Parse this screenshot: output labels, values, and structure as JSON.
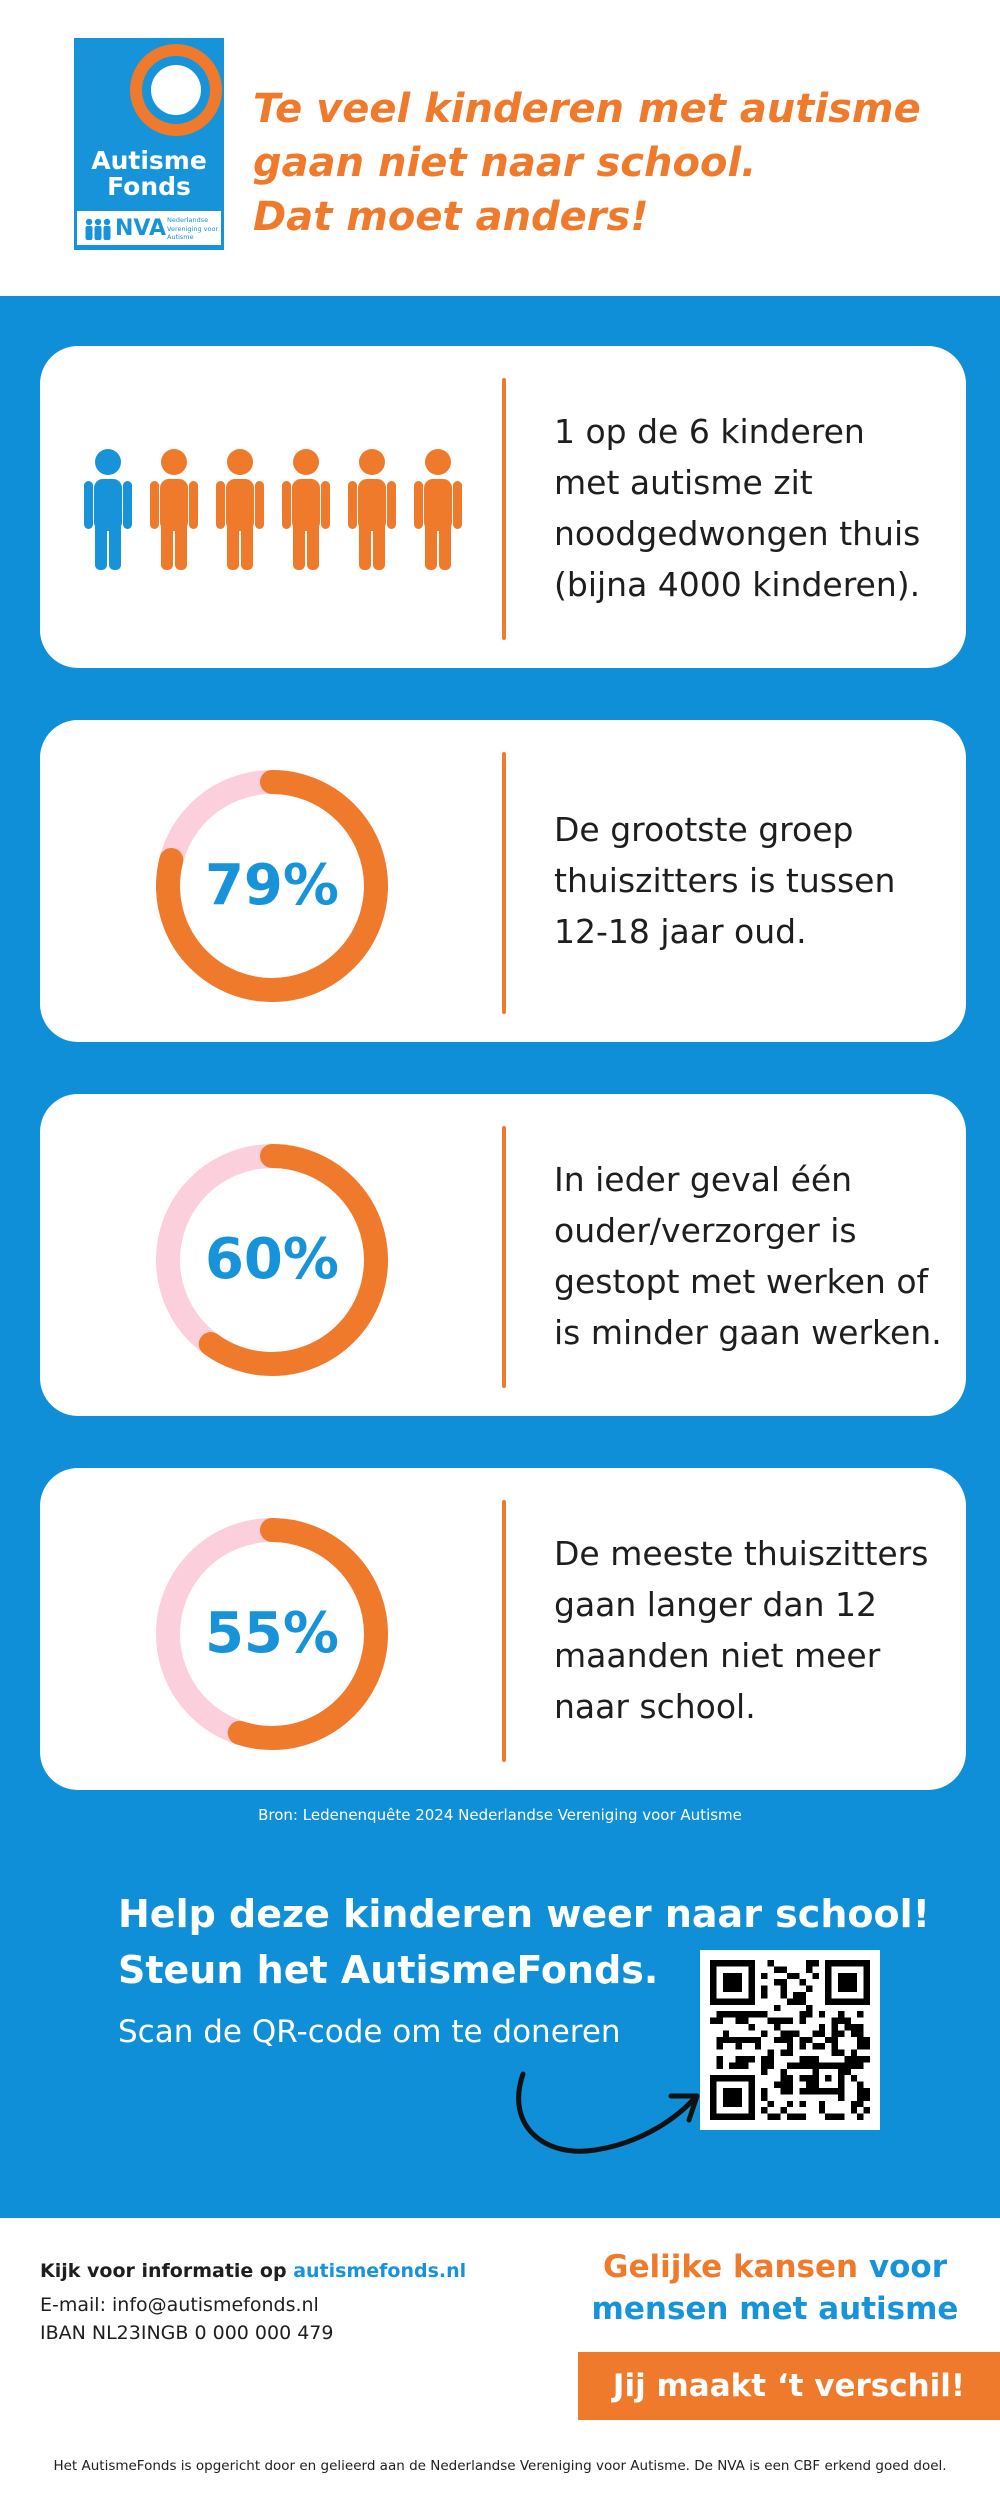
{
  "header": {
    "logo": {
      "name_line1": "Autisme",
      "name_line2": "Fonds",
      "nva": "NVA",
      "nva_sub": "Nederlandse Vereniging voor Autisme"
    },
    "headline_lines": [
      "Te veel kinderen met autisme",
      "gaan niet naar school.",
      "Dat moet anders!"
    ]
  },
  "colors": {
    "blue": "#0f8fd8",
    "logo_blue": "#1793d9",
    "orange": "#f07a2c",
    "pink": "#fbcfdc"
  },
  "stats": [
    {
      "type": "people",
      "icon": "people-icon",
      "highlighted_of": 6,
      "lines": [
        "1 op de 6 kinderen",
        "met autisme zit",
        "noodgedwongen thuis",
        "(bijna 4000 kinderen)."
      ]
    },
    {
      "type": "donut",
      "percent": 79,
      "label": "79%",
      "lines": [
        "De grootste groep",
        "thuiszitters is tussen",
        "12-18 jaar oud."
      ]
    },
    {
      "type": "donut",
      "percent": 60,
      "label": "60%",
      "lines": [
        "In ieder geval één",
        "ouder/verzorger is",
        "gestopt met werken of",
        "is minder gaan werken."
      ]
    },
    {
      "type": "donut",
      "percent": 55,
      "label": "55%",
      "lines": [
        "De meeste thuiszitters",
        "gaan langer dan 12",
        "maanden niet meer",
        "naar school."
      ]
    }
  ],
  "source": "Bron: Ledenenquête 2024 Nederlandse Vereniging voor Autisme",
  "cta": {
    "title_lines": [
      "Help deze kinderen weer naar school!",
      "Steun het AutismeFonds."
    ],
    "scan": "Scan de QR-code om te doneren",
    "qr_icon": "qr-code-icon"
  },
  "footer": {
    "info_prefix": "Kijk voor informatie op ",
    "info_link": "autismefonds.nl",
    "email": "E-mail: info@autismefonds.nl",
    "iban": "IBAN NL23INGB 0 000 000 479",
    "slogan_orange": "Gelijke kansen",
    "slogan_blue_1": " voor",
    "slogan_blue_2": "mensen met autisme",
    "cta_button": "Jij maakt ‘t verschil!",
    "disclaimer": "Het AutismeFonds is opgericht door en gelieerd aan de Nederlandse Vereniging voor Autisme.  De NVA is een CBF erkend goed doel."
  }
}
